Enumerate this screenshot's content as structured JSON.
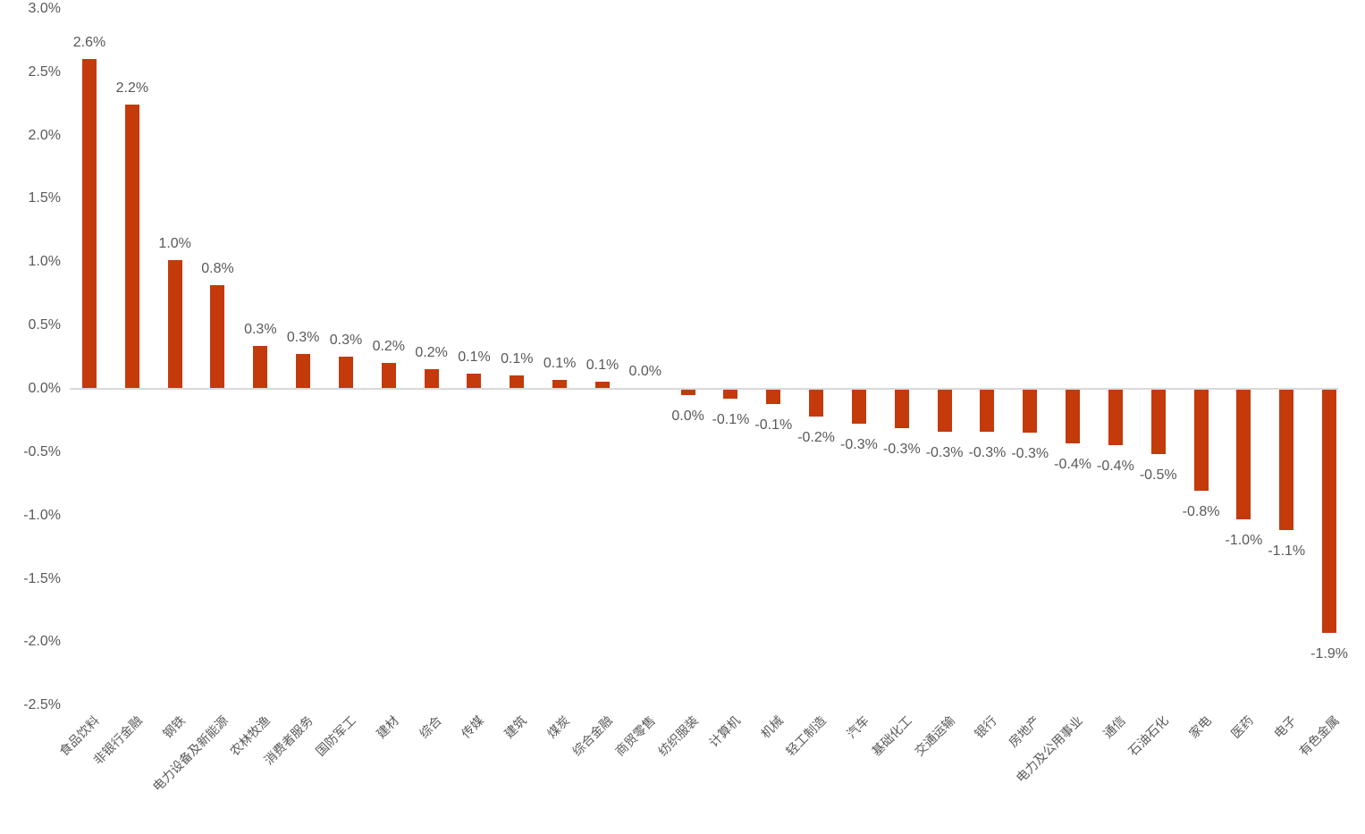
{
  "chart_data": {
    "type": "bar",
    "title": "",
    "xlabel": "",
    "ylabel": "",
    "grid": false,
    "legend": false,
    "x_label_rotation_deg": 45,
    "categories": [
      "食品饮料",
      "非银行金融",
      "钢铁",
      "电力设备及新能源",
      "农林牧渔",
      "消费者服务",
      "国防军工",
      "建材",
      "综合",
      "传媒",
      "建筑",
      "煤炭",
      "综合金融",
      "商贸零售",
      "纺织服装",
      "计算机",
      "机械",
      "轻工制造",
      "汽车",
      "基础化工",
      "交通运输",
      "银行",
      "房地产",
      "电力及公用事业",
      "通信",
      "石油石化",
      "家电",
      "医药",
      "电子",
      "有色金属"
    ],
    "values": [
      2.6,
      2.24,
      1.01,
      0.81,
      0.33,
      0.27,
      0.25,
      0.2,
      0.15,
      0.11,
      0.1,
      0.06,
      0.05,
      0.0,
      -0.04,
      -0.07,
      -0.11,
      -0.21,
      -0.27,
      -0.3,
      -0.33,
      -0.33,
      -0.34,
      -0.42,
      -0.44,
      -0.51,
      -0.8,
      -1.02,
      -1.11,
      -1.92
    ],
    "data_labels": [
      "2.6%",
      "2.2%",
      "1.0%",
      "0.8%",
      "0.3%",
      "0.3%",
      "0.3%",
      "0.2%",
      "0.2%",
      "0.1%",
      "0.1%",
      "0.1%",
      "0.1%",
      "0.0%",
      "0.0%",
      "-0.1%",
      "-0.1%",
      "-0.2%",
      "-0.3%",
      "-0.3%",
      "-0.3%",
      "-0.3%",
      "-0.3%",
      "-0.4%",
      "-0.4%",
      "-0.5%",
      "-0.8%",
      "-1.0%",
      "-1.1%",
      "-1.9%"
    ],
    "unit": "%",
    "y_axis": {
      "min": -2.5,
      "max": 3.0,
      "tick_step": 0.5,
      "ticks": [
        "3.0%",
        "2.5%",
        "2.0%",
        "1.5%",
        "1.0%",
        "0.5%",
        "0.0%",
        "-0.5%",
        "-1.0%",
        "-1.5%",
        "-2.0%",
        "-2.5%"
      ],
      "tick_values": [
        3.0,
        2.5,
        2.0,
        1.5,
        1.0,
        0.5,
        0.0,
        -0.5,
        -1.0,
        -1.5,
        -2.0,
        -2.5
      ]
    },
    "colors": {
      "bar": "#C43A0B",
      "axis_text": "#595959",
      "data_label_text": "#595959",
      "zero_line": "#D9D9D9",
      "background": "#FFFFFF"
    }
  }
}
